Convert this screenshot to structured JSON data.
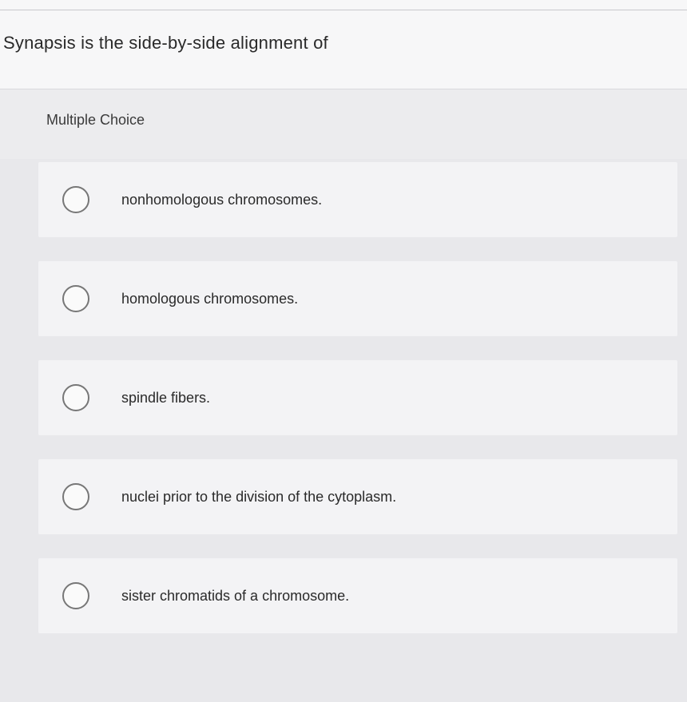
{
  "question": {
    "prompt": "Synapsis is the side-by-side alignment of",
    "type_label": "Multiple Choice"
  },
  "options": [
    {
      "label": "nonhomologous chromosomes."
    },
    {
      "label": "homologous chromosomes."
    },
    {
      "label": "spindle fibers."
    },
    {
      "label": "nuclei prior to the division of the cytoplasm."
    },
    {
      "label": "sister chromatids of a chromosome."
    }
  ],
  "colors": {
    "page_bg": "#e8e8eb",
    "card_bg": "#f3f3f5",
    "question_bg": "#f7f7f8",
    "text": "#2a2a2a",
    "radio_border": "#777777"
  }
}
